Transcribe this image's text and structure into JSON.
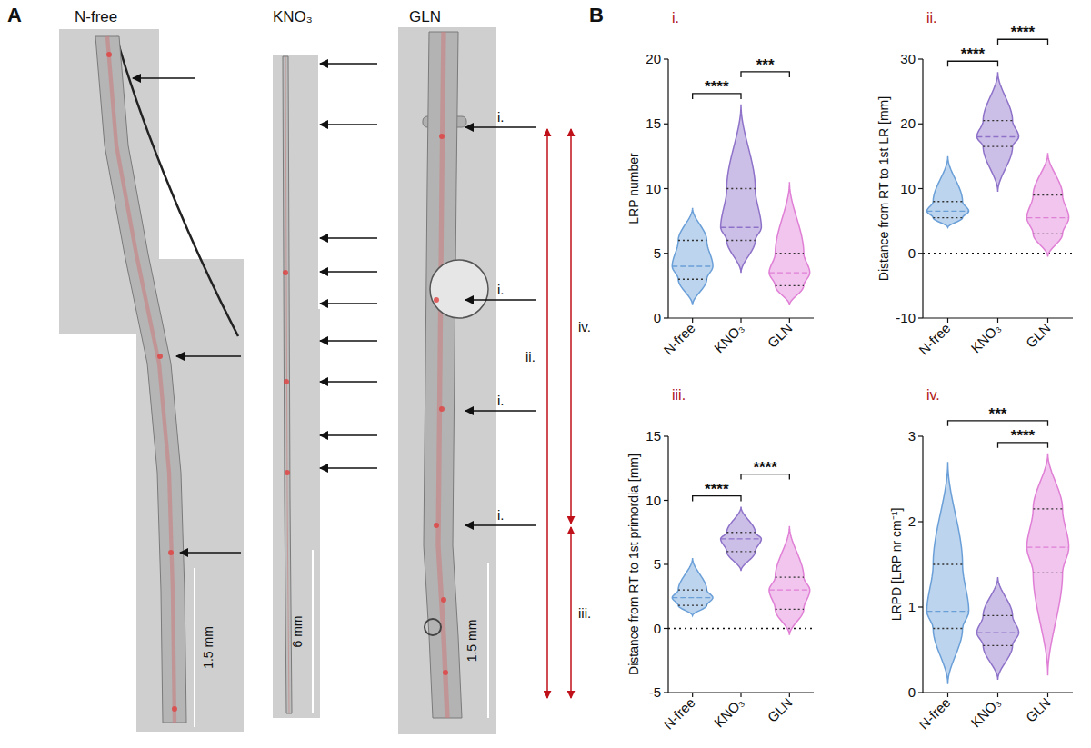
{
  "panel_a": {
    "label": "A",
    "images": [
      {
        "title": "N-free",
        "scale_bar": "1.5 mm"
      },
      {
        "title": "KNO₃",
        "scale_bar": "6 mm"
      },
      {
        "title": "GLN",
        "scale_bar": "1.5 mm"
      }
    ],
    "annotations": {
      "primordia": [
        "i.",
        "i.",
        "i.",
        "i."
      ],
      "ranges": [
        "ii.",
        "iv.",
        "iii."
      ]
    }
  },
  "panel_b": {
    "label": "B"
  },
  "chart_data": [
    {
      "type": "violin",
      "title": "i.",
      "ylabel": "LRP number",
      "categories": [
        "N-free",
        "KNO₃",
        "GLN"
      ],
      "colors": [
        "#6a9fd8",
        "#8e72c9",
        "#e07fd6"
      ],
      "min": [
        1,
        3.5,
        1
      ],
      "q1": [
        3,
        6,
        2.5
      ],
      "median": [
        4,
        7,
        3.5
      ],
      "q3": [
        6,
        10,
        5
      ],
      "max": [
        8.5,
        16.5,
        10.5
      ],
      "ylim": [
        0,
        20
      ],
      "yticks": [
        0,
        5,
        10,
        15,
        20
      ],
      "comparisons": [
        {
          "groups": [
            "N-free",
            "KNO₃"
          ],
          "label": "****"
        },
        {
          "groups": [
            "KNO₃",
            "GLN"
          ],
          "label": "***"
        }
      ]
    },
    {
      "type": "violin",
      "title": "ii.",
      "ylabel": "Distance from RT to 1st LR [mm]",
      "categories": [
        "N-free",
        "KNO₃",
        "GLN"
      ],
      "colors": [
        "#6a9fd8",
        "#8e72c9",
        "#e07fd6"
      ],
      "min": [
        4,
        9.5,
        -0.5
      ],
      "q1": [
        5.5,
        16.5,
        3
      ],
      "median": [
        6.5,
        18,
        5.5
      ],
      "q3": [
        8,
        20.5,
        9
      ],
      "max": [
        15,
        28,
        15.5
      ],
      "ylim": [
        -10,
        30
      ],
      "yticks": [
        -10,
        0,
        10,
        20,
        30
      ],
      "comparisons": [
        {
          "groups": [
            "N-free",
            "KNO₃"
          ],
          "label": "****"
        },
        {
          "groups": [
            "KNO₃",
            "GLN"
          ],
          "label": "****"
        }
      ]
    },
    {
      "type": "violin",
      "title": "iii.",
      "ylabel": "Distance from RT to 1st primordia [mm]",
      "categories": [
        "N-free",
        "KNO₃",
        "GLN"
      ],
      "colors": [
        "#6a9fd8",
        "#8e72c9",
        "#e07fd6"
      ],
      "min": [
        1,
        4.5,
        -0.5
      ],
      "q1": [
        1.8,
        6,
        1.5
      ],
      "median": [
        2.4,
        7,
        3
      ],
      "q3": [
        3,
        7.5,
        4
      ],
      "max": [
        5.5,
        9.5,
        8
      ],
      "ylim": [
        -5,
        15
      ],
      "yticks": [
        -5,
        0,
        5,
        10,
        15
      ],
      "comparisons": [
        {
          "groups": [
            "N-free",
            "KNO₃"
          ],
          "label": "****"
        },
        {
          "groups": [
            "KNO₃",
            "GLN"
          ],
          "label": "****"
        }
      ]
    },
    {
      "type": "violin",
      "title": "iv.",
      "ylabel": "LRPD [LRP nr cm⁻¹]",
      "categories": [
        "N-free",
        "KNO₃",
        "GLN"
      ],
      "colors": [
        "#6a9fd8",
        "#8e72c9",
        "#e07fd6"
      ],
      "min": [
        0.1,
        0.15,
        0.2
      ],
      "q1": [
        0.75,
        0.55,
        1.4
      ],
      "median": [
        0.95,
        0.7,
        1.7
      ],
      "q3": [
        1.5,
        0.9,
        2.15
      ],
      "max": [
        2.7,
        1.35,
        2.8
      ],
      "ylim": [
        0,
        3
      ],
      "yticks": [
        0,
        1,
        2,
        3
      ],
      "comparisons": [
        {
          "groups": [
            "N-free",
            "GLN"
          ],
          "label": "***"
        },
        {
          "groups": [
            "KNO₃",
            "GLN"
          ],
          "label": "****"
        }
      ]
    }
  ]
}
